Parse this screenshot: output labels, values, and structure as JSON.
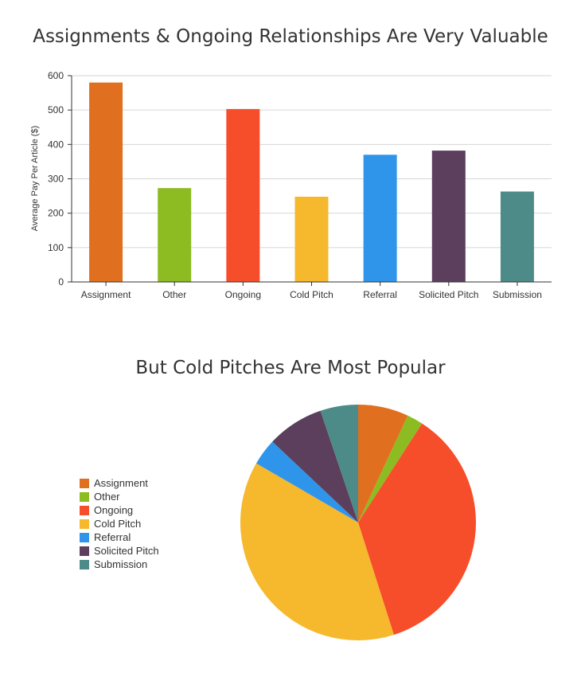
{
  "colors": {
    "Assignment": "#E07020",
    "Other": "#8DBB22",
    "Ongoing": "#F64E2A",
    "Cold Pitch": "#F6B82C",
    "Referral": "#2F95EA",
    "Solicited Pitch": "#5B3F5C",
    "Submission": "#4C8B88"
  },
  "chart_data": [
    {
      "type": "bar",
      "title": "Assignments & Ongoing Relationships Are Very Valuable",
      "xlabel": "",
      "ylabel": "Average Pay Per Article ($)",
      "categories": [
        "Assignment",
        "Other",
        "Ongoing",
        "Cold Pitch",
        "Referral",
        "Solicited Pitch",
        "Submission"
      ],
      "values": [
        580,
        273,
        503,
        248,
        370,
        382,
        263
      ],
      "ylim": [
        0,
        600
      ],
      "yticks": [
        0,
        100,
        200,
        300,
        400,
        500,
        600
      ],
      "grid": true
    },
    {
      "type": "pie",
      "title": "But Cold Pitches Are Most Popular",
      "labels": [
        "Assignment",
        "Other",
        "Ongoing",
        "Cold Pitch",
        "Referral",
        "Solicited Pitch",
        "Submission"
      ],
      "values": [
        7.2,
        2.3,
        37.4,
        39.8,
        3.8,
        8.1,
        5.4
      ],
      "legend": "left"
    }
  ]
}
